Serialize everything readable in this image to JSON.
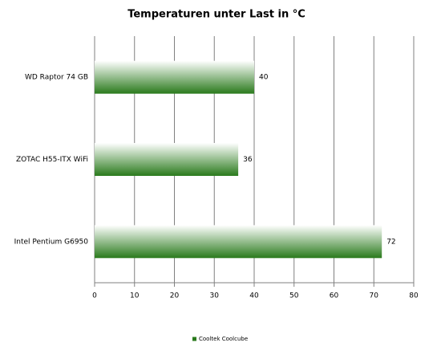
{
  "chart_data": {
    "type": "bar",
    "orientation": "horizontal",
    "title": "Temperaturen unter Last in °C",
    "categories": [
      "WD Raptor 74 GB",
      "ZOTAC H55-ITX WiFi",
      "Intel Pentium G6950"
    ],
    "series": [
      {
        "name": "Cooltek Coolcube",
        "color": "#2a7a1c",
        "values": [
          40,
          36,
          72
        ]
      }
    ],
    "xlim": [
      0,
      80
    ],
    "xticks": [
      0,
      10,
      20,
      30,
      40,
      50,
      60,
      70,
      80
    ],
    "grid": true,
    "legend": "bottom"
  }
}
